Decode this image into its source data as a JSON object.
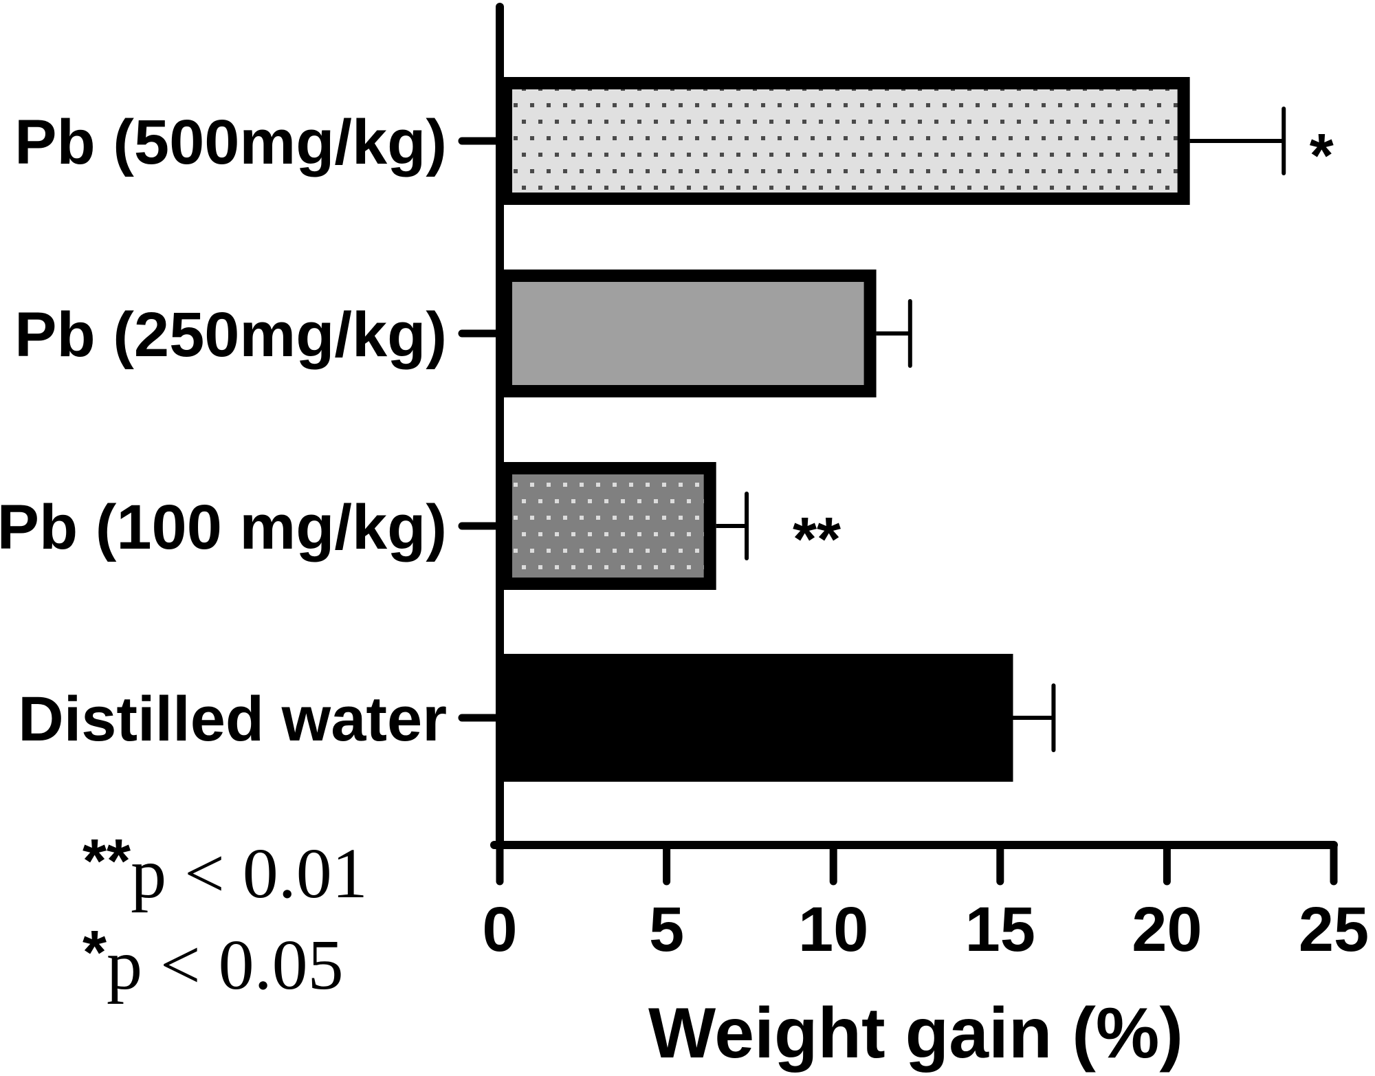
{
  "chart_data": {
    "type": "bar",
    "orientation": "horizontal",
    "title": "",
    "xlabel": "Weight gain (%)",
    "ylabel": "",
    "xlim": [
      0,
      25
    ],
    "xticks": [
      0,
      5,
      10,
      15,
      20,
      25
    ],
    "xtick_labels": [
      "0",
      "5",
      "10",
      "15",
      "20",
      "25"
    ],
    "grid": false,
    "categories": [
      "Pb (500mg/kg)",
      "Pb (250mg/kg)",
      "Pb (100 mg/kg)",
      "Distilled water"
    ],
    "values": [
      20.5,
      11.1,
      6.3,
      15.2
    ],
    "error_upper": [
      23.5,
      12.3,
      7.4,
      16.6
    ],
    "errors": [
      3.0,
      1.2,
      1.1,
      1.4
    ],
    "significance": [
      "*",
      "",
      "**",
      ""
    ],
    "styles": [
      {
        "fill": "#e0e0e0",
        "dots": "#4a4a4a",
        "pattern": "dotted",
        "border": "#000000"
      },
      {
        "fill": "#a0a0a0",
        "dots": "",
        "pattern": "solid",
        "border": "#000000"
      },
      {
        "fill": "#808080",
        "dots": "#dcdcdc",
        "pattern": "dotted",
        "border": "#000000"
      },
      {
        "fill": "#000000",
        "dots": "",
        "pattern": "solid",
        "border": "#000000"
      }
    ],
    "annotations": [
      {
        "stars": "**",
        "text": "p < 0.01"
      },
      {
        "stars": "*",
        "text": "p < 0.05"
      }
    ]
  }
}
